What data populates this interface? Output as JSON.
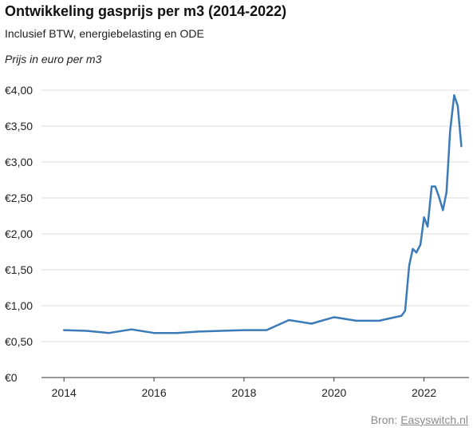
{
  "chart_data": {
    "type": "line",
    "title": "Ontwikkeling gasprijs per m3 (2014-2022)",
    "subtitle": "Inclusief BTW, energiebelasting en ODE",
    "ylabel": "Prijs in euro per m3",
    "xlabel": "",
    "xlim": [
      2013.5,
      2023.0
    ],
    "ylim": [
      0,
      4.0
    ],
    "x_ticks": [
      2014,
      2016,
      2018,
      2020,
      2022
    ],
    "x_tick_labels": [
      "2014",
      "2016",
      "2018",
      "2020",
      "2022"
    ],
    "y_ticks": [
      0,
      0.5,
      1.0,
      1.5,
      2.0,
      2.5,
      3.0,
      3.5,
      4.0
    ],
    "y_tick_labels": [
      "€0",
      "€0,50",
      "€1,00",
      "€1,50",
      "€2,00",
      "€2,50",
      "€3,00",
      "€3,50",
      "€4,00"
    ],
    "grid": "horizontal",
    "line_color": "#3a7ab8",
    "series": [
      {
        "x": [
          2014.0,
          2014.5,
          2015.0,
          2015.5,
          2016.0,
          2016.5,
          2017.0,
          2017.5,
          2018.0,
          2018.5,
          2019.0,
          2019.5,
          2020.0,
          2020.5,
          2021.0,
          2021.5,
          2021.58,
          2021.67,
          2021.75,
          2021.83,
          2021.92,
          2022.0,
          2022.08,
          2022.17,
          2022.25,
          2022.33,
          2022.42,
          2022.5,
          2022.58,
          2022.67,
          2022.75,
          2022.83
        ],
        "y": [
          0.66,
          0.65,
          0.62,
          0.67,
          0.62,
          0.62,
          0.64,
          0.65,
          0.66,
          0.66,
          0.8,
          0.75,
          0.84,
          0.79,
          0.79,
          0.86,
          0.93,
          1.56,
          1.79,
          1.74,
          1.85,
          2.23,
          2.1,
          2.66,
          2.66,
          2.52,
          2.33,
          2.58,
          3.43,
          3.93,
          3.78,
          3.22
        ]
      }
    ]
  },
  "source": {
    "label": "Bron:",
    "link": "Easyswitch.nl"
  }
}
